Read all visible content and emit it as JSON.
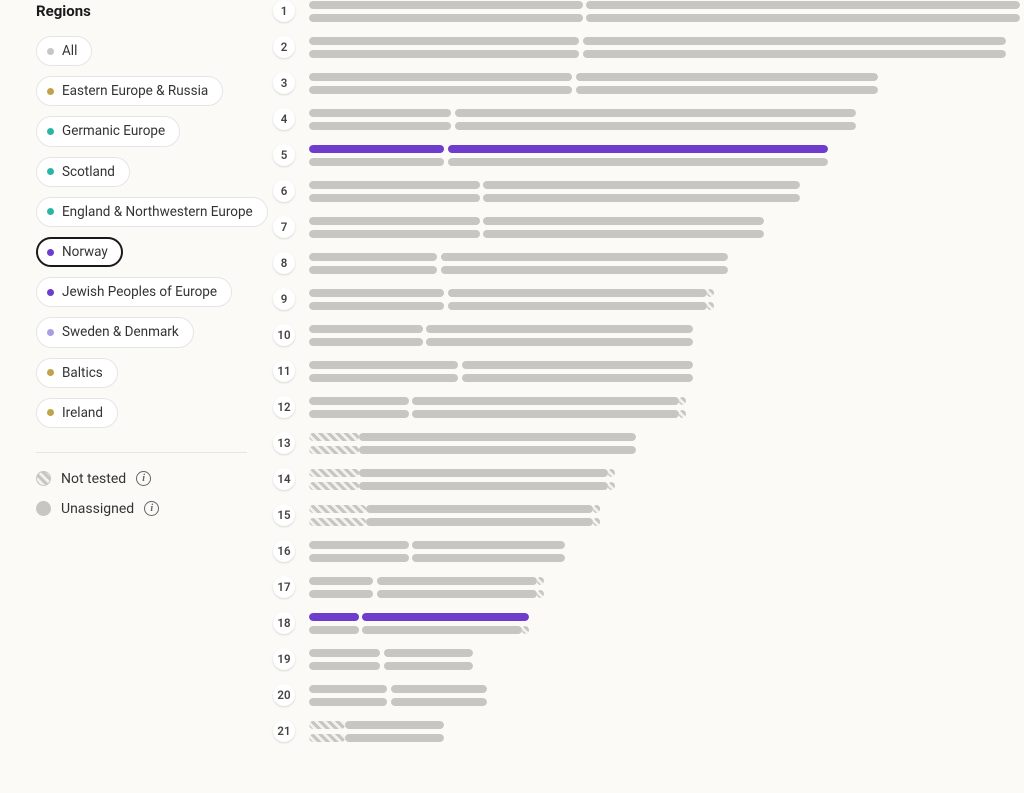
{
  "colors": {
    "unassigned": "#c8c6c3",
    "highlight": "#6e3dcd",
    "hatched_a": "#c8c6c3",
    "hatched_b": "#f4f2ef",
    "chip_border": "#e5e5e5",
    "chip_selected_border": "#1a1a1a",
    "bg": "#fcfaf7"
  },
  "sidebar": {
    "title": "Regions",
    "regions": [
      {
        "label": "All",
        "color": "#c8c6c3",
        "selected": false
      },
      {
        "label": "Eastern Europe & Russia",
        "color": "#bfa24a",
        "selected": false
      },
      {
        "label": "Germanic Europe",
        "color": "#2ab6a6",
        "selected": false
      },
      {
        "label": "Scotland",
        "color": "#2ab6a6",
        "selected": false
      },
      {
        "label": "England & Northwestern Europe",
        "color": "#2ab6a6",
        "selected": false
      },
      {
        "label": "Norway",
        "color": "#6e3dcd",
        "selected": true
      },
      {
        "label": "Jewish Peoples of Europe",
        "color": "#6e3dcd",
        "selected": false
      },
      {
        "label": "Sweden & Denmark",
        "color": "#a99de0",
        "selected": false
      },
      {
        "label": "Baltics",
        "color": "#bfa24a",
        "selected": false
      },
      {
        "label": "Ireland",
        "color": "#bfa24a",
        "selected": false
      }
    ],
    "legend": {
      "not_tested": "Not tested",
      "unassigned": "Unassigned"
    }
  },
  "chart": {
    "track_full_pct": 100,
    "chromosomes": [
      {
        "n": 1,
        "len": 100,
        "top": [
          {
            "s": 0,
            "e": 38.5,
            "t": "u"
          },
          {
            "s": 39,
            "e": 100,
            "t": "u"
          }
        ],
        "bot": [
          {
            "s": 0,
            "e": 38.5,
            "t": "u"
          },
          {
            "s": 39,
            "e": 100,
            "t": "u"
          }
        ]
      },
      {
        "n": 2,
        "len": 98,
        "top": [
          {
            "s": 0,
            "e": 38,
            "t": "u"
          },
          {
            "s": 38.5,
            "e": 98,
            "t": "u"
          }
        ],
        "bot": [
          {
            "s": 0,
            "e": 38,
            "t": "u"
          },
          {
            "s": 38.5,
            "e": 98,
            "t": "u"
          }
        ]
      },
      {
        "n": 3,
        "len": 80,
        "top": [
          {
            "s": 0,
            "e": 37,
            "t": "u"
          },
          {
            "s": 37.5,
            "e": 80,
            "t": "u"
          }
        ],
        "bot": [
          {
            "s": 0,
            "e": 37,
            "t": "u"
          },
          {
            "s": 37.5,
            "e": 80,
            "t": "u"
          }
        ]
      },
      {
        "n": 4,
        "len": 77,
        "top": [
          {
            "s": 0,
            "e": 20,
            "t": "u"
          },
          {
            "s": 20.5,
            "e": 77,
            "t": "u"
          }
        ],
        "bot": [
          {
            "s": 0,
            "e": 20,
            "t": "u"
          },
          {
            "s": 20.5,
            "e": 77,
            "t": "u"
          }
        ]
      },
      {
        "n": 5,
        "len": 73,
        "top": [
          {
            "s": 0,
            "e": 19,
            "t": "hl"
          },
          {
            "s": 19.5,
            "e": 73,
            "t": "hl"
          }
        ],
        "bot": [
          {
            "s": 0,
            "e": 19,
            "t": "u"
          },
          {
            "s": 19.5,
            "e": 73,
            "t": "u"
          }
        ]
      },
      {
        "n": 6,
        "len": 69,
        "top": [
          {
            "s": 0,
            "e": 24,
            "t": "u"
          },
          {
            "s": 24.5,
            "e": 69,
            "t": "u"
          }
        ],
        "bot": [
          {
            "s": 0,
            "e": 24,
            "t": "u"
          },
          {
            "s": 24.5,
            "e": 69,
            "t": "u"
          }
        ]
      },
      {
        "n": 7,
        "len": 64,
        "top": [
          {
            "s": 0,
            "e": 24,
            "t": "u"
          },
          {
            "s": 24.5,
            "e": 64,
            "t": "u"
          }
        ],
        "bot": [
          {
            "s": 0,
            "e": 24,
            "t": "u"
          },
          {
            "s": 24.5,
            "e": 64,
            "t": "u"
          }
        ]
      },
      {
        "n": 8,
        "len": 59,
        "top": [
          {
            "s": 0,
            "e": 18,
            "t": "u"
          },
          {
            "s": 18.5,
            "e": 59,
            "t": "u"
          }
        ],
        "bot": [
          {
            "s": 0,
            "e": 18,
            "t": "u"
          },
          {
            "s": 18.5,
            "e": 59,
            "t": "u"
          }
        ]
      },
      {
        "n": 9,
        "len": 57,
        "top": [
          {
            "s": 0,
            "e": 19,
            "t": "u"
          },
          {
            "s": 19.5,
            "e": 56,
            "t": "u"
          },
          {
            "s": 56,
            "e": 57,
            "t": "h"
          }
        ],
        "bot": [
          {
            "s": 0,
            "e": 19,
            "t": "u"
          },
          {
            "s": 19.5,
            "e": 56,
            "t": "u"
          },
          {
            "s": 56,
            "e": 57,
            "t": "h"
          }
        ]
      },
      {
        "n": 10,
        "len": 54,
        "top": [
          {
            "s": 0,
            "e": 16,
            "t": "u"
          },
          {
            "s": 16.5,
            "e": 54,
            "t": "u"
          }
        ],
        "bot": [
          {
            "s": 0,
            "e": 16,
            "t": "u"
          },
          {
            "s": 16.5,
            "e": 54,
            "t": "u"
          }
        ]
      },
      {
        "n": 11,
        "len": 54,
        "top": [
          {
            "s": 0,
            "e": 21,
            "t": "u"
          },
          {
            "s": 21.5,
            "e": 54,
            "t": "u"
          }
        ],
        "bot": [
          {
            "s": 0,
            "e": 21,
            "t": "u"
          },
          {
            "s": 21.5,
            "e": 54,
            "t": "u"
          }
        ]
      },
      {
        "n": 12,
        "len": 53,
        "top": [
          {
            "s": 0,
            "e": 14,
            "t": "u"
          },
          {
            "s": 14.5,
            "e": 52,
            "t": "u"
          },
          {
            "s": 52,
            "e": 53,
            "t": "h"
          }
        ],
        "bot": [
          {
            "s": 0,
            "e": 14,
            "t": "u"
          },
          {
            "s": 14.5,
            "e": 52,
            "t": "u"
          },
          {
            "s": 52,
            "e": 53,
            "t": "h"
          }
        ]
      },
      {
        "n": 13,
        "len": 46,
        "top": [
          {
            "s": 0,
            "e": 7,
            "t": "h"
          },
          {
            "s": 7,
            "e": 46,
            "t": "u"
          }
        ],
        "bot": [
          {
            "s": 0,
            "e": 7,
            "t": "h"
          },
          {
            "s": 7,
            "e": 46,
            "t": "u"
          }
        ]
      },
      {
        "n": 14,
        "len": 43,
        "top": [
          {
            "s": 0,
            "e": 7,
            "t": "h"
          },
          {
            "s": 7,
            "e": 42,
            "t": "u"
          },
          {
            "s": 42,
            "e": 43,
            "t": "h"
          }
        ],
        "bot": [
          {
            "s": 0,
            "e": 7,
            "t": "h"
          },
          {
            "s": 7,
            "e": 42,
            "t": "u"
          },
          {
            "s": 42,
            "e": 43,
            "t": "h"
          }
        ]
      },
      {
        "n": 15,
        "len": 41,
        "top": [
          {
            "s": 0,
            "e": 8,
            "t": "h"
          },
          {
            "s": 8,
            "e": 40,
            "t": "u"
          },
          {
            "s": 40,
            "e": 41,
            "t": "h"
          }
        ],
        "bot": [
          {
            "s": 0,
            "e": 8,
            "t": "h"
          },
          {
            "s": 8,
            "e": 40,
            "t": "u"
          },
          {
            "s": 40,
            "e": 41,
            "t": "h"
          }
        ]
      },
      {
        "n": 16,
        "len": 36,
        "top": [
          {
            "s": 0,
            "e": 14,
            "t": "u"
          },
          {
            "s": 14.5,
            "e": 36,
            "t": "u"
          }
        ],
        "bot": [
          {
            "s": 0,
            "e": 14,
            "t": "u"
          },
          {
            "s": 14.5,
            "e": 36,
            "t": "u"
          }
        ]
      },
      {
        "n": 17,
        "len": 33,
        "top": [
          {
            "s": 0,
            "e": 9,
            "t": "u"
          },
          {
            "s": 9.5,
            "e": 32,
            "t": "u"
          },
          {
            "s": 32,
            "e": 33,
            "t": "h"
          }
        ],
        "bot": [
          {
            "s": 0,
            "e": 9,
            "t": "u"
          },
          {
            "s": 9.5,
            "e": 32,
            "t": "u"
          },
          {
            "s": 32,
            "e": 33,
            "t": "h"
          }
        ]
      },
      {
        "n": 18,
        "len": 31,
        "top": [
          {
            "s": 0,
            "e": 7,
            "t": "hl"
          },
          {
            "s": 7.5,
            "e": 31,
            "t": "hl"
          }
        ],
        "bot": [
          {
            "s": 0,
            "e": 7,
            "t": "u"
          },
          {
            "s": 7.5,
            "e": 30,
            "t": "u"
          },
          {
            "s": 30,
            "e": 31,
            "t": "h"
          }
        ]
      },
      {
        "n": 19,
        "len": 23,
        "top": [
          {
            "s": 0,
            "e": 10,
            "t": "u"
          },
          {
            "s": 10.5,
            "e": 23,
            "t": "u"
          }
        ],
        "bot": [
          {
            "s": 0,
            "e": 10,
            "t": "u"
          },
          {
            "s": 10.5,
            "e": 23,
            "t": "u"
          }
        ]
      },
      {
        "n": 20,
        "len": 25,
        "top": [
          {
            "s": 0,
            "e": 11,
            "t": "u"
          },
          {
            "s": 11.5,
            "e": 25,
            "t": "u"
          }
        ],
        "bot": [
          {
            "s": 0,
            "e": 11,
            "t": "u"
          },
          {
            "s": 11.5,
            "e": 25,
            "t": "u"
          }
        ]
      },
      {
        "n": 21,
        "len": 19,
        "top": [
          {
            "s": 0,
            "e": 5,
            "t": "h"
          },
          {
            "s": 5,
            "e": 19,
            "t": "u"
          }
        ],
        "bot": [
          {
            "s": 0,
            "e": 5,
            "t": "h"
          },
          {
            "s": 5,
            "e": 19,
            "t": "u"
          }
        ]
      }
    ]
  }
}
